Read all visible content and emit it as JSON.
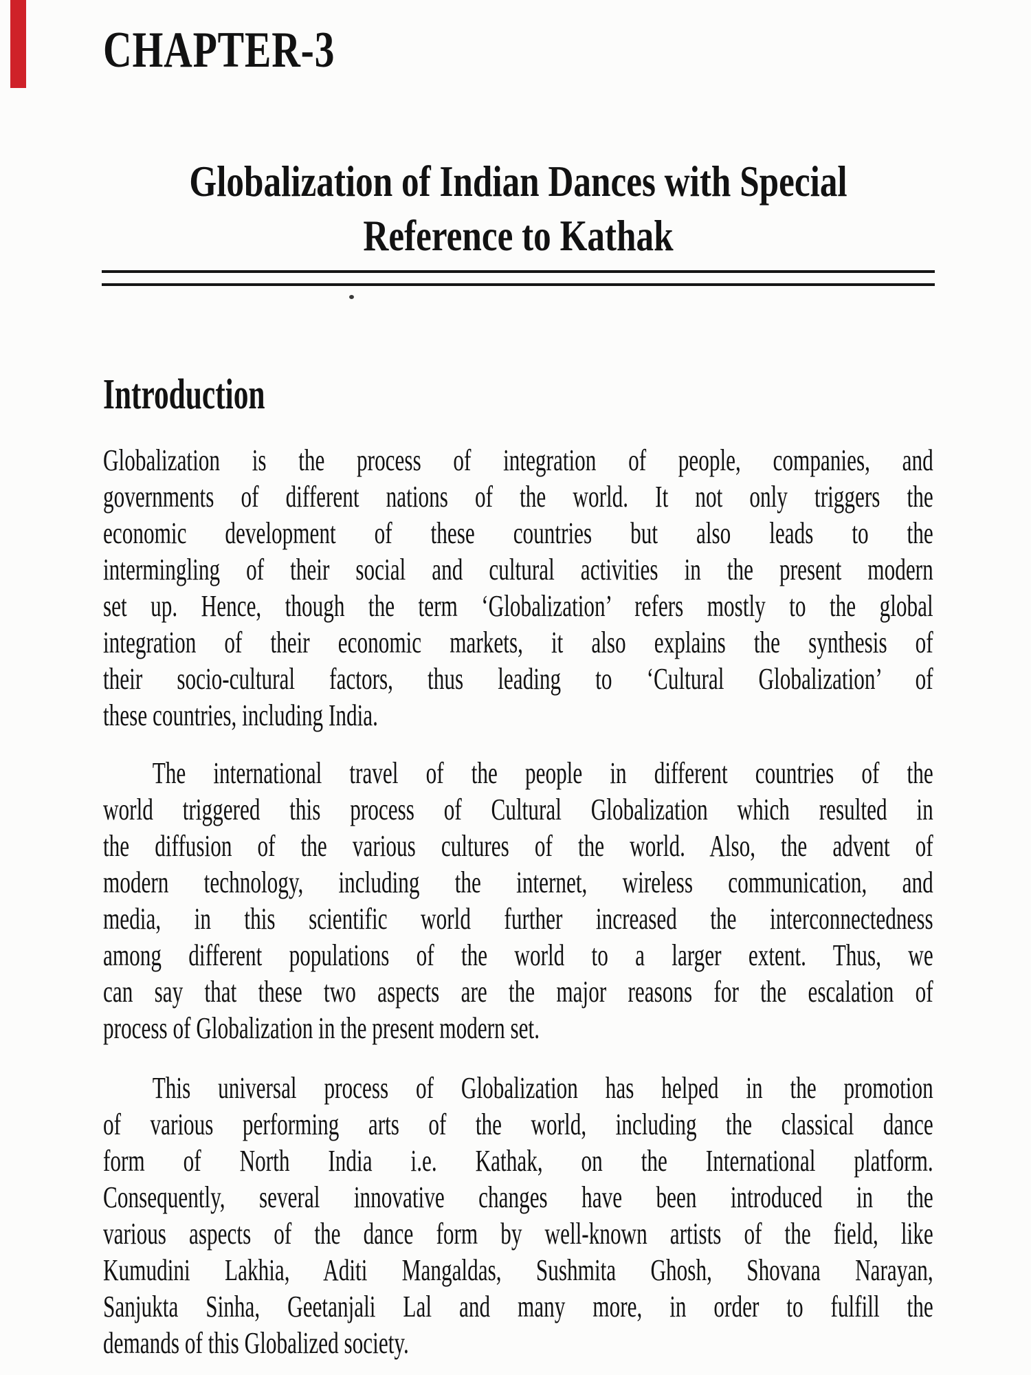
{
  "page": {
    "colors": {
      "background": "#fcfcfb",
      "text": "#121212",
      "accent_red": "#cf2229",
      "rule": "#151515"
    },
    "chapter_label": "CHAPTER-3",
    "title": {
      "line1": "Globalization of Indian Dances with Special",
      "line2": "Reference to Kathak"
    },
    "section_heading": "Introduction",
    "paragraphs": [
      {
        "indent_first_line": false,
        "lines": [
          "Globalization is the process of integration of people, companies, and",
          "governments of different nations of the world. It not only triggers the",
          "economic development of these countries but also leads to the",
          "intermingling of their social and cultural activities in the present modern",
          "set up. Hence, though the term ‘Globalization’ refers mostly to the global",
          "integration of their economic markets, it also explains the synthesis of",
          "their socio-cultural factors, thus leading to ‘Cultural Globalization’ of",
          "these countries, including India."
        ]
      },
      {
        "indent_first_line": true,
        "lines": [
          "The international travel of the people in different countries of the",
          "world triggered this process of Cultural Globalization which resulted in",
          "the diffusion of the various cultures of the world. Also, the advent of",
          "modern technology, including the internet, wireless communication, and",
          "media, in this scientific world further increased the interconnectedness",
          "among different populations of the world to a larger extent. Thus, we",
          "can say that these two aspects are the major reasons for the escalation of",
          "process of Globalization in the present modern set."
        ]
      },
      {
        "indent_first_line": true,
        "lines": [
          "This universal process of Globalization has helped in the promotion",
          "of various performing arts of the world, including the classical dance",
          "form of North India i.e. Kathak, on the International platform.",
          "Consequently, several innovative changes have been introduced in the",
          "various aspects of the dance form by well-known artists of the field, like",
          "Kumudini Lakhia, Aditi Mangaldas, Sushmita Ghosh, Shovana Narayan,",
          "Sanjukta Sinha, Geetanjali Lal and many more, in order to fulfill the",
          "demands of this Globalized society."
        ]
      }
    ]
  }
}
